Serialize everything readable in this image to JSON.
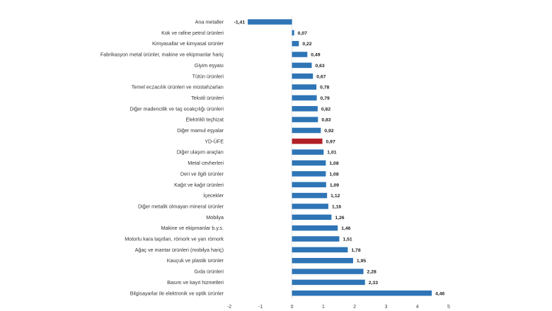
{
  "chart_data": {
    "type": "bar",
    "orientation": "horizontal",
    "title": "",
    "xlabel": "",
    "ylabel": "",
    "xlim": [
      -2,
      5
    ],
    "x_ticks": [
      "-2",
      "-1",
      "0",
      "1",
      "2",
      "3",
      "4",
      "5"
    ],
    "grid": false,
    "legend": "none",
    "colors": {
      "default": "#2e75b6",
      "highlight": "#b22026"
    },
    "highlight_category": "YD-ÜFE",
    "categories": [
      "Ana metaller",
      "Kok ve rafine petrol ürünleri",
      "Kimyasallar ve kimyasal ürünler",
      "Fabrikasyon metal ürünler, makine ve ekipmanlar hariç",
      "Giyim eşyası",
      "Tütün ürünleri",
      "Temel eczacılık ürünleri ve müstahzarları",
      "Tekstil ürünleri",
      "Diğer madencilik ve taş ocakçılığı ürünleri",
      "Elektrikli teçhizat",
      "Diğer mamul eşyalar",
      "YD-ÜFE",
      "Diğer ulaşım araçları",
      "Metal cevherleri",
      "Deri ve ilgili ürünler",
      "Kağıt ve kağıt ürünleri",
      "İçecekler",
      "Diğer metalik olmayan mineral ürünler",
      "Mobilya",
      "Makine ve ekipmanlar b.y.s.",
      "Motorlu kara taşıtları, römork ve yarı römork",
      "Ağaç ve mantar ürünleri (mobilya hariç)",
      "Kauçuk ve plastik ürünler",
      "Gıda ürünleri",
      "Basım ve kayıt hizmetleri",
      "Bilgisayarlar ile elektronik ve optik ürünler"
    ],
    "values": [
      -1.41,
      0.07,
      0.22,
      0.49,
      0.63,
      0.67,
      0.78,
      0.79,
      0.82,
      0.83,
      0.92,
      0.97,
      1.01,
      1.08,
      1.08,
      1.09,
      1.12,
      1.16,
      1.26,
      1.46,
      1.51,
      1.78,
      1.95,
      2.28,
      2.33,
      4.46
    ],
    "value_labels": [
      "-1,41",
      "0,07",
      "0,22",
      "0,49",
      "0,63",
      "0,67",
      "0,78",
      "0,79",
      "0,82",
      "0,83",
      "0,92",
      "0,97",
      "1,01",
      "1,08",
      "1,08",
      "1,09",
      "1,12",
      "1,16",
      "1,26",
      "1,46",
      "1,51",
      "1,78",
      "1,95",
      "2,28",
      "2,33",
      "4,46"
    ]
  }
}
